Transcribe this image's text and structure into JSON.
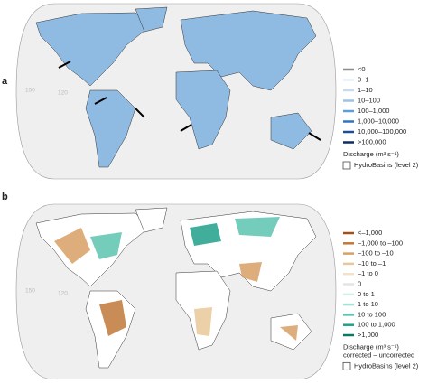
{
  "panels": [
    {
      "label": "a",
      "graticule_labels": [
        "150",
        "120"
      ],
      "legend": {
        "items": [
          {
            "label": "<0",
            "color": "#8c8c8c"
          },
          {
            "label": "0–1",
            "color": "#e6eef8"
          },
          {
            "label": "1–10",
            "color": "#c6daf0"
          },
          {
            "label": "10–100",
            "color": "#9cc2e6"
          },
          {
            "label": "100–1,000",
            "color": "#5e9ed6"
          },
          {
            "label": "1,000–10,000",
            "color": "#2f74bf"
          },
          {
            "label": "10,000–100,000",
            "color": "#1b4e98"
          },
          {
            "label": ">100,000",
            "color": "#0b2a66"
          }
        ],
        "title": "Discharge (m³ s⁻¹)",
        "basins": "HydroBasins (level 2)"
      }
    },
    {
      "label": "b",
      "graticule_labels": [
        "150",
        "120"
      ],
      "legend": {
        "items": [
          {
            "label": "<–1,000",
            "color": "#a0501a"
          },
          {
            "label": "–1,000 to –100",
            "color": "#c0783a"
          },
          {
            "label": "–100 to –10",
            "color": "#d8a064"
          },
          {
            "label": "–10 to –1",
            "color": "#e8c89a"
          },
          {
            "label": "–1 to 0",
            "color": "#f2e3c8"
          },
          {
            "label": "0",
            "color": "#e4e4e4"
          },
          {
            "label": "0 to 1",
            "color": "#d6efea"
          },
          {
            "label": "1 to 10",
            "color": "#a8e0d4"
          },
          {
            "label": "10 to 100",
            "color": "#5cc4b0"
          },
          {
            "label": "100 to 1,000",
            "color": "#20a08a"
          },
          {
            "label": ">1,000",
            "color": "#0a7866"
          }
        ],
        "title": "Discharge (m³ s⁻¹)",
        "subtitle": "corrected – uncorrected",
        "basins": "HydroBasins (level 2)"
      }
    }
  ]
}
